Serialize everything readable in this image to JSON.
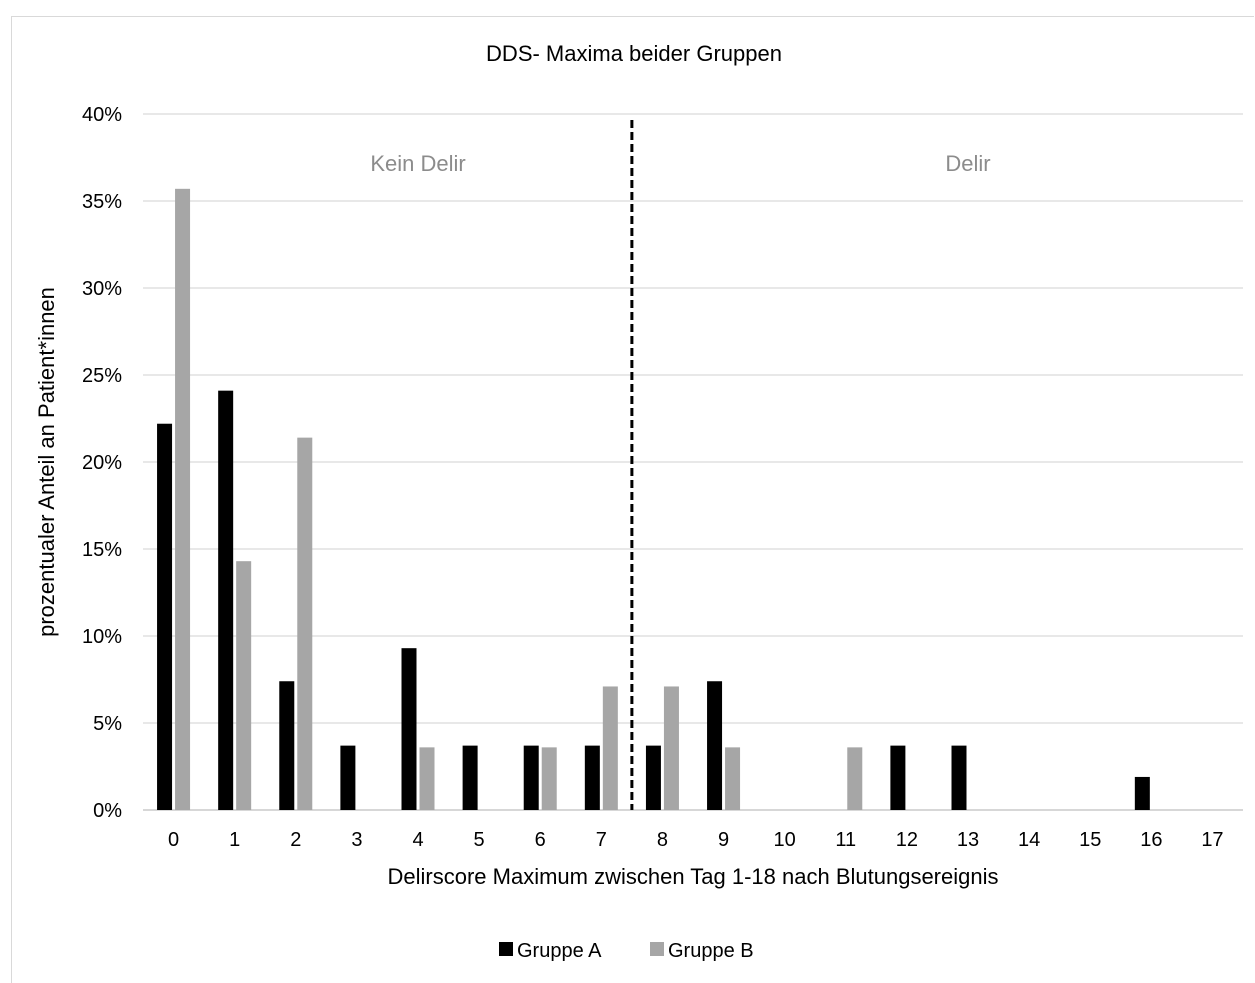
{
  "chart_data": {
    "type": "bar",
    "title": "DDS- Maxima beider Gruppen",
    "xlabel": "Delirscore Maximum zwischen Tag 1-18 nach Blutungsereignis",
    "ylabel": "prozentualer Anteil an Patient*innen",
    "categories": [
      "0",
      "1",
      "2",
      "3",
      "4",
      "5",
      "6",
      "7",
      "8",
      "9",
      "10",
      "11",
      "12",
      "13",
      "14",
      "15",
      "16",
      "17"
    ],
    "series": [
      {
        "name": "Gruppe A",
        "color": "#000000",
        "values": [
          22.2,
          24.1,
          7.4,
          3.7,
          9.3,
          3.7,
          3.7,
          3.7,
          3.7,
          7.4,
          0,
          0,
          3.7,
          3.7,
          0,
          0,
          1.9,
          0
        ]
      },
      {
        "name": "Gruppe B",
        "color": "#a6a6a6",
        "values": [
          35.7,
          14.3,
          21.4,
          0,
          3.6,
          0,
          3.6,
          7.1,
          7.1,
          3.6,
          0,
          3.6,
          0,
          0,
          0,
          0,
          0,
          0
        ]
      }
    ],
    "ylim": [
      0,
      40
    ],
    "yticks": [
      "0%",
      "5%",
      "10%",
      "15%",
      "20%",
      "25%",
      "30%",
      "35%",
      "40%"
    ],
    "ytick_values": [
      0,
      5,
      10,
      15,
      20,
      25,
      30,
      35,
      40
    ],
    "grid": true,
    "legend_position": "bottom",
    "annotations": {
      "divider_between": [
        "7",
        "8"
      ],
      "left_region_label": "Kein Delir",
      "right_region_label": "Delir"
    }
  }
}
